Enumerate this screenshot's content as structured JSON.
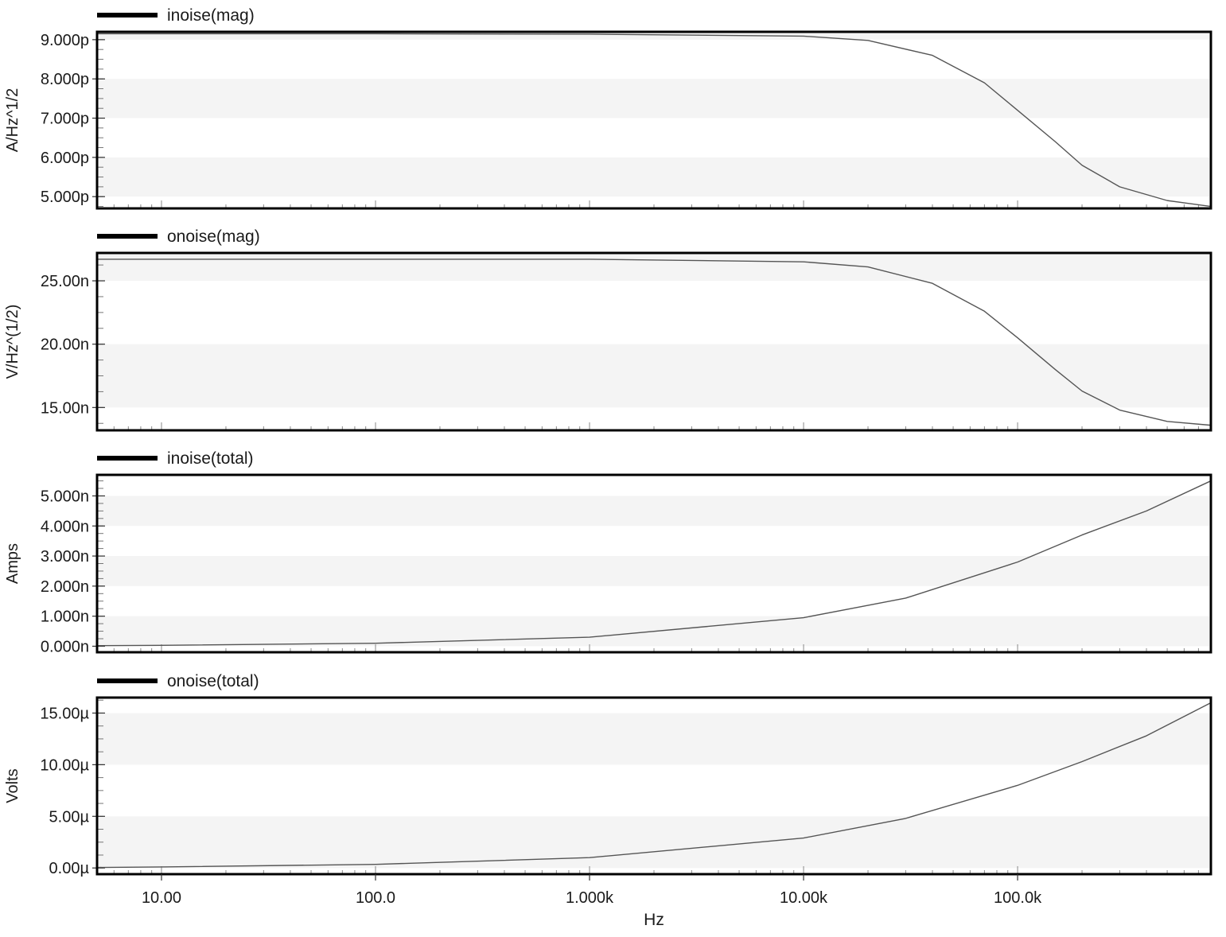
{
  "chart_data": [
    {
      "type": "line",
      "legend": "inoise(mag)",
      "ylabel": "A/Hz^1/2",
      "x_scale": "log",
      "xlim": [
        5,
        800000
      ],
      "ylim": [
        4.7,
        9.2
      ],
      "y_ticks": [
        9,
        8,
        7,
        6,
        5
      ],
      "y_tick_labels": [
        "9.000p",
        "8.000p",
        "7.000p",
        "6.000p",
        "5.000p"
      ],
      "grid": "alternating horizontal bands",
      "series": [
        {
          "x": [
            5,
            10,
            100,
            1000,
            10000,
            20000,
            40000,
            70000,
            100000,
            150000,
            200000,
            300000,
            500000,
            800000
          ],
          "y": [
            9.15,
            9.15,
            9.15,
            9.14,
            9.09,
            8.98,
            8.6,
            7.9,
            7.2,
            6.4,
            5.8,
            5.25,
            4.9,
            4.75
          ]
        }
      ]
    },
    {
      "type": "line",
      "legend": "onoise(mag)",
      "ylabel": "V/Hz^(1/2)",
      "x_scale": "log",
      "xlim": [
        5,
        800000
      ],
      "ylim": [
        13.2,
        27.2
      ],
      "y_ticks": [
        25,
        20,
        15
      ],
      "y_tick_labels": [
        "25.00n",
        "20.00n",
        "15.00n"
      ],
      "grid": "alternating horizontal bands",
      "series": [
        {
          "x": [
            5,
            10,
            100,
            1000,
            10000,
            20000,
            40000,
            70000,
            100000,
            150000,
            200000,
            300000,
            500000,
            800000
          ],
          "y": [
            26.7,
            26.7,
            26.7,
            26.7,
            26.5,
            26.1,
            24.8,
            22.6,
            20.5,
            18.0,
            16.3,
            14.8,
            13.9,
            13.6
          ]
        }
      ]
    },
    {
      "type": "line",
      "legend": "inoise(total)",
      "ylabel": "Amps",
      "x_scale": "log",
      "xlim": [
        5,
        800000
      ],
      "ylim": [
        -0.2,
        5.7
      ],
      "y_ticks": [
        5,
        4,
        3,
        2,
        1,
        0
      ],
      "y_tick_labels": [
        "5.000n",
        "4.000n",
        "3.000n",
        "2.000n",
        "1.000n",
        "0.000n"
      ],
      "grid": "alternating horizontal bands",
      "series": [
        {
          "x": [
            5,
            10,
            100,
            1000,
            10000,
            30000,
            100000,
            200000,
            400000,
            800000
          ],
          "y": [
            0.02,
            0.03,
            0.1,
            0.3,
            0.95,
            1.6,
            2.8,
            3.7,
            4.5,
            5.5
          ]
        }
      ]
    },
    {
      "type": "line",
      "legend": "onoise(total)",
      "ylabel": "Volts",
      "x_scale": "log",
      "xlim": [
        5,
        800000
      ],
      "ylim": [
        -0.6,
        16.5
      ],
      "y_ticks": [
        15,
        10,
        5,
        0
      ],
      "y_tick_labels": [
        "15.00µ",
        "10.00µ",
        "5.00µ",
        "0.00µ"
      ],
      "x_ticks": [
        10,
        100,
        1000,
        10000,
        100000
      ],
      "x_tick_labels": [
        "10.00",
        "100.0",
        "1.000k",
        "10.00k",
        "100.0k"
      ],
      "xlabel": "Hz",
      "grid": "alternating horizontal bands",
      "series": [
        {
          "x": [
            5,
            10,
            100,
            1000,
            10000,
            30000,
            100000,
            200000,
            400000,
            800000
          ],
          "y": [
            0.05,
            0.1,
            0.35,
            1.0,
            2.9,
            4.8,
            8.0,
            10.3,
            12.8,
            16.0
          ]
        }
      ]
    }
  ]
}
